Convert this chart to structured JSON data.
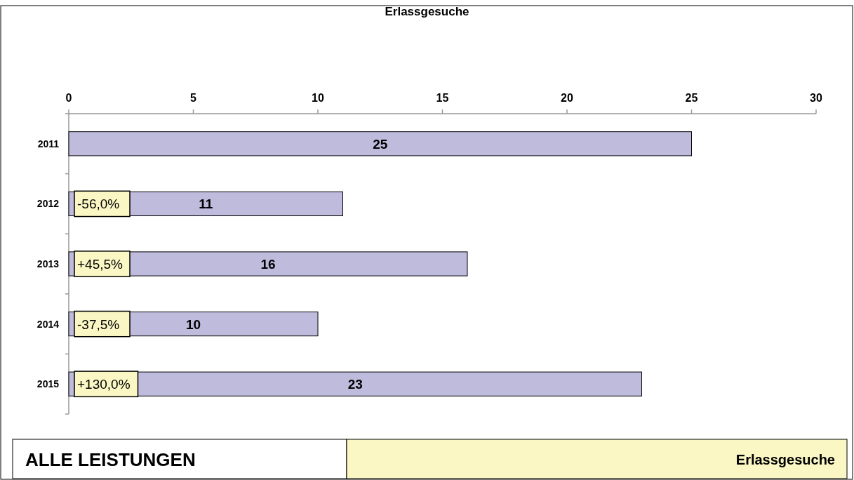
{
  "chart_data": {
    "type": "bar",
    "orientation": "horizontal",
    "title": "Erlassgesuche",
    "categories": [
      "2011",
      "2012",
      "2013",
      "2014",
      "2015"
    ],
    "values": [
      25,
      11,
      16,
      10,
      23
    ],
    "color": "#bfbbdd",
    "xlim": [
      0,
      30
    ],
    "xticks": [
      0,
      5,
      10,
      15,
      20,
      25,
      30
    ],
    "grid": false,
    "data_labels": true,
    "annotations": [
      "-56,0%",
      "+45,5%",
      "-37,5%",
      "+130,0%",
      "ALLE LEISTUNGEN",
      "Erlassgesuche"
    ]
  }
}
